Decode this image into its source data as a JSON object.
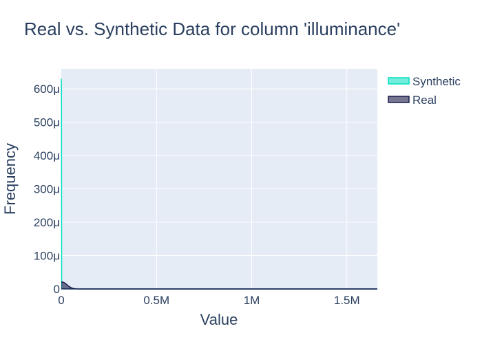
{
  "chart_data": {
    "type": "area",
    "title": "Real vs. Synthetic Data for column 'illuminance'",
    "xlabel": "Value",
    "ylabel": "Frequency",
    "xlim": [
      0,
      1660000
    ],
    "ylim": [
      0,
      0.00066
    ],
    "x_ticks": [
      {
        "value": 0,
        "label": "0"
      },
      {
        "value": 500000,
        "label": "0.5M"
      },
      {
        "value": 1000000,
        "label": "1M"
      },
      {
        "value": 1500000,
        "label": "1.5M"
      }
    ],
    "y_ticks": [
      {
        "value": 0,
        "label": "0"
      },
      {
        "value": 0.0001,
        "label": "100μ"
      },
      {
        "value": 0.0002,
        "label": "200μ"
      },
      {
        "value": 0.0003,
        "label": "300μ"
      },
      {
        "value": 0.0004,
        "label": "400μ"
      },
      {
        "value": 0.0005,
        "label": "500μ"
      },
      {
        "value": 0.0006,
        "label": "600μ"
      }
    ],
    "grid": true,
    "legend_position": "top-right",
    "background_color": "#e5ecf6",
    "series": [
      {
        "name": "Synthetic",
        "color": "#00e0c0",
        "fill_color": "rgba(0,224,192,0.55)",
        "x": [
          0,
          1000,
          2000,
          3000,
          5000,
          20000,
          100000,
          500000,
          1000000,
          1660000
        ],
        "y": [
          0.00063,
          0.0006,
          3e-05,
          1.5e-06,
          5e-07,
          2e-07,
          0,
          0,
          0,
          0
        ]
      },
      {
        "name": "Real",
        "color": "#1a1a4a",
        "fill_color": "rgba(26,26,74,0.6)",
        "x": [
          0,
          5000,
          15000,
          25000,
          35000,
          45000,
          55000,
          65000,
          80000,
          100000,
          300000,
          1000000,
          1660000
        ],
        "y": [
          2e-05,
          2.1e-05,
          1.9e-05,
          1.5e-05,
          1e-05,
          6e-06,
          3e-06,
          1.2e-06,
          3e-07,
          1e-07,
          0,
          0,
          0
        ]
      }
    ]
  }
}
